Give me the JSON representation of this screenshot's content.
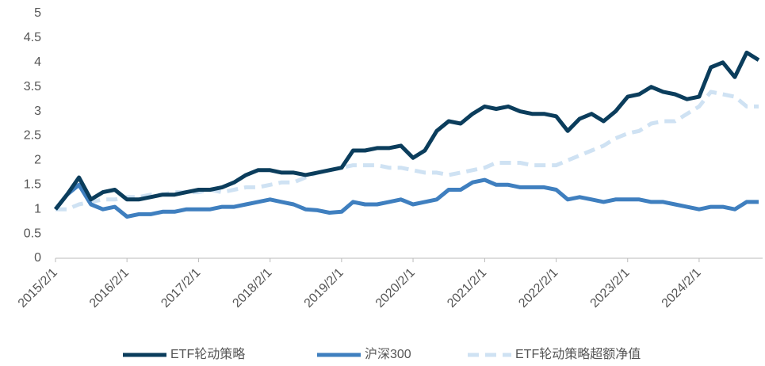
{
  "chart_data": {
    "type": "line",
    "x": [
      "2015/2/1",
      "2015/4/1",
      "2015/6/1",
      "2015/8/1",
      "2015/10/1",
      "2015/12/1",
      "2016/2/1",
      "2016/4/1",
      "2016/6/1",
      "2016/8/1",
      "2016/10/1",
      "2016/12/1",
      "2017/2/1",
      "2017/4/1",
      "2017/6/1",
      "2017/8/1",
      "2017/10/1",
      "2017/12/1",
      "2018/2/1",
      "2018/4/1",
      "2018/6/1",
      "2018/8/1",
      "2018/10/1",
      "2018/12/1",
      "2019/2/1",
      "2019/4/1",
      "2019/6/1",
      "2019/8/1",
      "2019/10/1",
      "2019/12/1",
      "2020/2/1",
      "2020/4/1",
      "2020/6/1",
      "2020/8/1",
      "2020/10/1",
      "2020/12/1",
      "2021/2/1",
      "2021/4/1",
      "2021/6/1",
      "2021/8/1",
      "2021/10/1",
      "2021/12/1",
      "2022/2/1",
      "2022/4/1",
      "2022/6/1",
      "2022/8/1",
      "2022/10/1",
      "2022/12/1",
      "2023/2/1",
      "2023/4/1",
      "2023/6/1",
      "2023/8/1",
      "2023/10/1",
      "2023/12/1",
      "2024/2/1",
      "2024/4/1",
      "2024/6/1",
      "2024/8/1",
      "2024/10/1",
      "2024/12/1"
    ],
    "series": [
      {
        "name": "ETF轮动策略",
        "color": "#0b3d5c",
        "dash": false,
        "values": [
          1.0,
          1.3,
          1.65,
          1.2,
          1.35,
          1.4,
          1.2,
          1.2,
          1.25,
          1.3,
          1.3,
          1.35,
          1.4,
          1.4,
          1.45,
          1.55,
          1.7,
          1.8,
          1.8,
          1.75,
          1.75,
          1.7,
          1.75,
          1.8,
          1.85,
          2.2,
          2.2,
          2.25,
          2.25,
          2.3,
          2.05,
          2.2,
          2.6,
          2.8,
          2.75,
          2.95,
          3.1,
          3.05,
          3.1,
          3.0,
          2.95,
          2.95,
          2.9,
          2.6,
          2.85,
          2.95,
          2.8,
          3.0,
          3.3,
          3.35,
          3.5,
          3.4,
          3.35,
          3.25,
          3.3,
          3.9,
          4.0,
          3.7,
          4.2,
          4.05
        ]
      },
      {
        "name": "沪深300",
        "color": "#3f7fbf",
        "dash": false,
        "values": [
          1.0,
          1.3,
          1.5,
          1.1,
          1.0,
          1.05,
          0.85,
          0.9,
          0.9,
          0.95,
          0.95,
          1.0,
          1.0,
          1.0,
          1.05,
          1.05,
          1.1,
          1.15,
          1.2,
          1.15,
          1.1,
          1.0,
          0.98,
          0.93,
          0.95,
          1.15,
          1.1,
          1.1,
          1.15,
          1.2,
          1.1,
          1.15,
          1.2,
          1.4,
          1.4,
          1.55,
          1.6,
          1.5,
          1.5,
          1.45,
          1.45,
          1.45,
          1.4,
          1.2,
          1.25,
          1.2,
          1.15,
          1.2,
          1.2,
          1.2,
          1.15,
          1.15,
          1.1,
          1.05,
          1.0,
          1.05,
          1.05,
          1.0,
          1.15,
          1.15
        ]
      },
      {
        "name": "ETF轮动策略超额净值",
        "color": "#cfe2f3",
        "dash": true,
        "values": [
          1.0,
          1.0,
          1.1,
          1.15,
          1.2,
          1.2,
          1.25,
          1.25,
          1.3,
          1.3,
          1.35,
          1.35,
          1.35,
          1.4,
          1.35,
          1.4,
          1.45,
          1.45,
          1.5,
          1.55,
          1.55,
          1.65,
          1.75,
          1.8,
          1.85,
          1.9,
          1.9,
          1.9,
          1.85,
          1.85,
          1.8,
          1.75,
          1.75,
          1.7,
          1.75,
          1.8,
          1.85,
          1.95,
          1.95,
          1.95,
          1.9,
          1.9,
          1.9,
          2.0,
          2.1,
          2.2,
          2.3,
          2.45,
          2.55,
          2.6,
          2.75,
          2.8,
          2.8,
          2.95,
          3.1,
          3.4,
          3.35,
          3.3,
          3.1,
          3.1
        ]
      }
    ],
    "xlim": [
      "2015/2/1",
      "2024/12/1"
    ],
    "xticks": [
      "2015/2/1",
      "2016/2/1",
      "2017/2/1",
      "2018/2/1",
      "2019/2/1",
      "2020/2/1",
      "2021/2/1",
      "2022/2/1",
      "2023/2/1",
      "2024/2/1"
    ],
    "ylim": [
      0,
      5
    ],
    "yticks": [
      0,
      0.5,
      1,
      1.5,
      2,
      2.5,
      3,
      3.5,
      4,
      4.5,
      5
    ],
    "grid": false,
    "legend": "bottom"
  }
}
